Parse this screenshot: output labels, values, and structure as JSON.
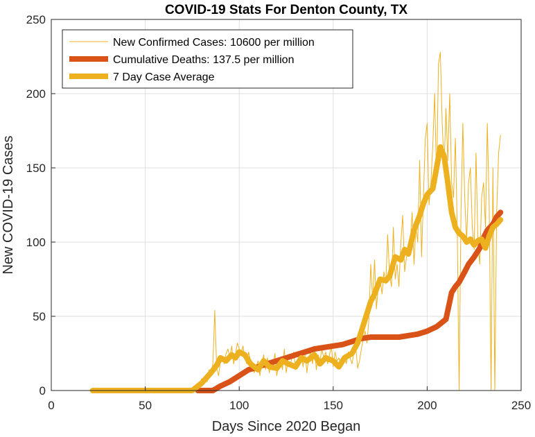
{
  "chart_data": {
    "type": "line",
    "title": "COVID-19 Stats For Denton County, TX",
    "xlabel": "Days Since 2020 Began",
    "ylabel": "New COVID-19 Cases",
    "xlim": [
      0,
      250
    ],
    "ylim": [
      0,
      250
    ],
    "xticks": [
      0,
      50,
      100,
      150,
      200,
      250
    ],
    "yticks": [
      0,
      50,
      100,
      150,
      200,
      250
    ],
    "grid": true,
    "legend_position": "top-left",
    "series": [
      {
        "name": "New Confirmed Cases: 10600 per million",
        "color": "#EDB120",
        "line": "thin",
        "x": [
          22,
          30,
          40,
          50,
          60,
          70,
          75,
          77,
          78,
          79,
          80,
          81,
          82,
          83,
          84,
          85,
          86,
          87,
          88,
          89,
          90,
          91,
          92,
          93,
          94,
          95,
          96,
          97,
          98,
          99,
          100,
          101,
          102,
          103,
          104,
          105,
          106,
          107,
          108,
          109,
          110,
          111,
          112,
          113,
          114,
          115,
          116,
          117,
          118,
          119,
          120,
          121,
          122,
          123,
          124,
          125,
          126,
          127,
          128,
          129,
          130,
          131,
          132,
          133,
          134,
          135,
          136,
          137,
          138,
          139,
          140,
          141,
          142,
          143,
          144,
          145,
          146,
          147,
          148,
          149,
          150,
          151,
          152,
          153,
          154,
          155,
          156,
          157,
          158,
          159,
          160,
          161,
          162,
          163,
          164,
          165,
          166,
          167,
          168,
          169,
          170,
          171,
          172,
          173,
          174,
          175,
          176,
          177,
          178,
          179,
          180,
          181,
          182,
          183,
          184,
          185,
          186,
          187,
          188,
          189,
          190,
          191,
          192,
          193,
          194,
          195,
          196,
          197,
          198,
          199,
          200,
          201,
          202,
          203,
          204,
          205,
          206,
          207,
          208,
          209,
          210,
          211,
          212,
          213,
          214,
          215,
          216,
          217,
          218,
          219,
          220,
          221,
          222,
          223,
          224,
          225,
          226,
          227,
          228,
          229,
          230,
          231,
          232,
          233,
          234,
          235,
          236,
          237,
          238,
          239
        ],
        "y": [
          0,
          0,
          0,
          0,
          0,
          0,
          0,
          2,
          5,
          3,
          8,
          4,
          10,
          6,
          14,
          12,
          18,
          54,
          15,
          10,
          20,
          22,
          18,
          25,
          28,
          22,
          30,
          18,
          24,
          32,
          28,
          25,
          30,
          22,
          18,
          26,
          20,
          15,
          12,
          16,
          20,
          10,
          18,
          24,
          14,
          22,
          12,
          20,
          16,
          25,
          10,
          18,
          22,
          14,
          28,
          12,
          20,
          16,
          22,
          26,
          14,
          18,
          20,
          24,
          16,
          28,
          12,
          22,
          26,
          18,
          30,
          14,
          24,
          20,
          28,
          22,
          26,
          18,
          24,
          30,
          16,
          26,
          20,
          22,
          18,
          20,
          24,
          18,
          26,
          22,
          18,
          25,
          30,
          15,
          20,
          28,
          35,
          40,
          32,
          48,
          85,
          60,
          88,
          55,
          70,
          75,
          65,
          80,
          72,
          105,
          78,
          70,
          110,
          75,
          85,
          70,
          100,
          118,
          80,
          90,
          95,
          100,
          120,
          85,
          110,
          100,
          155,
          90,
          130,
          170,
          180,
          125,
          140,
          165,
          200,
          140,
          220,
          228,
          180,
          150,
          190,
          155,
          200,
          140,
          130,
          170,
          110,
          0,
          120,
          180,
          130,
          100,
          140,
          150,
          110,
          95,
          160,
          100,
          85,
          130,
          140,
          110,
          180,
          125,
          0,
          150,
          0,
          120,
          160,
          172
        ]
      },
      {
        "name": "Cumulative Deaths: 137.5 per million",
        "color": "#D95319",
        "line": "thick",
        "x": [
          78,
          86,
          90,
          95,
          100,
          105,
          108,
          110,
          115,
          120,
          125,
          130,
          135,
          140,
          145,
          150,
          155,
          160,
          165,
          170,
          175,
          180,
          185,
          190,
          195,
          200,
          205,
          210,
          213,
          215,
          217,
          220,
          222,
          225,
          228,
          230,
          232,
          235,
          237,
          239
        ],
        "y": [
          0,
          0,
          3,
          6,
          10,
          14,
          15,
          16,
          18,
          20,
          22,
          24,
          26,
          28,
          29,
          30,
          31,
          33,
          35,
          36,
          36,
          36,
          36,
          37,
          38,
          40,
          43,
          48,
          66,
          70,
          73,
          80,
          85,
          90,
          96,
          103,
          108,
          112,
          117,
          120
        ]
      },
      {
        "name": "7 Day Case Average",
        "color": "#EDB120",
        "line": "thick",
        "x": [
          22,
          40,
          60,
          75,
          80,
          85,
          88,
          90,
          93,
          96,
          98,
          100,
          103,
          106,
          110,
          113,
          116,
          120,
          123,
          126,
          130,
          133,
          136,
          140,
          143,
          146,
          150,
          153,
          156,
          160,
          163,
          165,
          168,
          170,
          172,
          175,
          178,
          180,
          183,
          186,
          188,
          190,
          193,
          196,
          198,
          200,
          203,
          205,
          207,
          209,
          211,
          213,
          215,
          217,
          219,
          221,
          223,
          225,
          227,
          229,
          231,
          233,
          235,
          237,
          239
        ],
        "y": [
          0,
          0,
          0,
          0,
          5,
          12,
          17,
          22,
          20,
          24,
          22,
          26,
          24,
          18,
          14,
          20,
          16,
          15,
          20,
          18,
          16,
          22,
          20,
          24,
          18,
          22,
          20,
          16,
          22,
          25,
          32,
          40,
          52,
          60,
          65,
          75,
          74,
          77,
          90,
          88,
          95,
          92,
          108,
          118,
          126,
          132,
          136,
          150,
          164,
          158,
          140,
          120,
          110,
          106,
          104,
          100,
          102,
          98,
          101,
          102,
          96,
          104,
          110,
          112,
          115
        ]
      }
    ]
  }
}
